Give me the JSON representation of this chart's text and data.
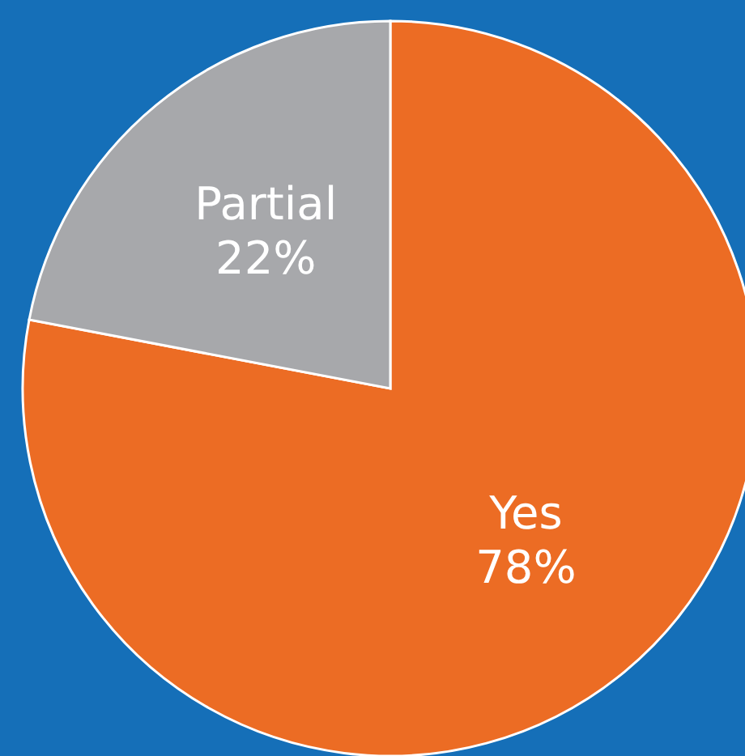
{
  "chart_data": {
    "type": "pie",
    "categories": [
      "Yes",
      "Partial"
    ],
    "values": [
      78,
      22
    ],
    "colors": [
      "#ec6c24",
      "#a7a8ab"
    ],
    "value_labels": [
      "78%",
      "22%"
    ]
  }
}
